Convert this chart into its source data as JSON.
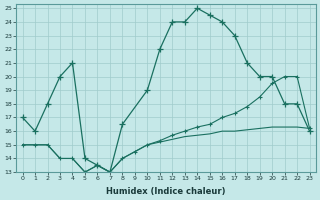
{
  "xlabel": "Humidex (Indice chaleur)",
  "bg_color": "#c5e8e8",
  "grid_color": "#a0cccc",
  "line_color": "#1a7060",
  "xlim": [
    0,
    23
  ],
  "ylim": [
    13,
    25
  ],
  "xticks": [
    0,
    1,
    2,
    3,
    4,
    5,
    6,
    7,
    8,
    9,
    10,
    11,
    12,
    13,
    14,
    15,
    16,
    17,
    18,
    19,
    20,
    21,
    22,
    23
  ],
  "yticks": [
    13,
    14,
    15,
    16,
    17,
    18,
    19,
    20,
    21,
    22,
    23,
    24,
    25
  ],
  "line1_x": [
    0,
    1,
    2,
    3,
    4,
    5,
    6,
    7,
    8,
    10,
    11,
    12,
    13,
    14,
    15,
    16,
    17,
    18,
    19,
    20,
    21,
    22,
    23
  ],
  "line1_y": [
    17,
    16,
    18,
    20,
    21,
    14,
    13.5,
    13,
    16.5,
    19,
    22,
    24,
    24,
    25,
    24.5,
    24,
    23,
    21,
    20,
    20,
    18,
    18,
    16
  ],
  "line2_x": [
    0,
    1,
    2,
    3,
    4,
    5,
    6,
    7,
    8,
    9,
    10,
    11,
    12,
    13,
    14,
    15,
    16,
    17,
    18,
    19,
    20,
    21,
    22,
    23
  ],
  "line2_y": [
    15,
    15,
    15,
    14,
    14,
    13,
    13.5,
    13,
    14,
    14.5,
    15,
    15.3,
    15.7,
    16,
    16.3,
    16.5,
    17,
    17.3,
    17.8,
    18.5,
    19.5,
    20,
    20,
    16.2
  ],
  "line3_x": [
    0,
    1,
    2,
    3,
    4,
    5,
    6,
    7,
    8,
    9,
    10,
    11,
    12,
    13,
    14,
    15,
    16,
    17,
    18,
    19,
    20,
    21,
    22,
    23
  ],
  "line3_y": [
    15,
    15,
    15,
    14,
    14,
    13,
    13.5,
    13,
    14,
    14.5,
    15,
    15.2,
    15.4,
    15.6,
    15.7,
    15.8,
    16,
    16,
    16.1,
    16.2,
    16.3,
    16.3,
    16.3,
    16.2
  ]
}
